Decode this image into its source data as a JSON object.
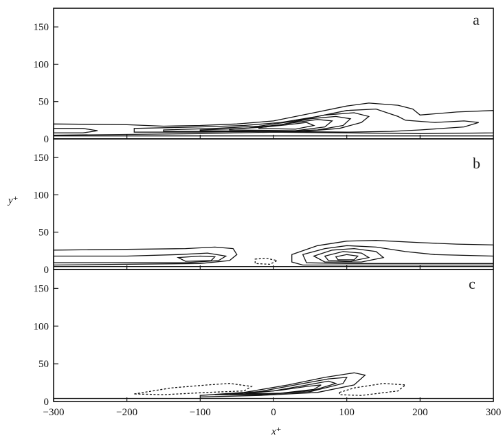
{
  "chart_data": [
    {
      "type": "contour",
      "panel_label": "a",
      "xlim": [
        -300,
        300
      ],
      "ylim": [
        0,
        175
      ],
      "yticks": [
        "150",
        "100",
        "50",
        "0"
      ],
      "ytick_values": [
        150,
        100,
        50,
        0
      ],
      "contour_levels": [
        {
          "style": "solid",
          "points": [
            [
              -300,
              20
            ],
            [
              -200,
              19
            ],
            [
              -150,
              17
            ],
            [
              -100,
              18
            ],
            [
              -50,
              20
            ],
            [
              0,
              24
            ],
            [
              50,
              34
            ],
            [
              100,
              44
            ],
            [
              130,
              48
            ],
            [
              170,
              45
            ],
            [
              190,
              40
            ],
            [
              200,
              32
            ],
            [
              250,
              36
            ],
            [
              300,
              38
            ],
            [
              300,
              8
            ],
            [
              200,
              7
            ],
            [
              100,
              8
            ],
            [
              0,
              9
            ],
            [
              -100,
              7
            ],
            [
              -200,
              6
            ],
            [
              -300,
              5
            ]
          ]
        },
        {
          "style": "solid",
          "points": [
            [
              -300,
              14
            ],
            [
              -260,
              14
            ],
            [
              -240,
              11
            ],
            [
              -260,
              8
            ],
            [
              -300,
              8
            ]
          ]
        },
        {
          "style": "solid",
          "points": [
            [
              -190,
              14
            ],
            [
              -100,
              16
            ],
            [
              -40,
              18
            ],
            [
              10,
              22
            ],
            [
              60,
              30
            ],
            [
              100,
              38
            ],
            [
              140,
              40
            ],
            [
              170,
              30
            ],
            [
              180,
              25
            ],
            [
              220,
              22
            ],
            [
              260,
              24
            ],
            [
              280,
              22
            ],
            [
              260,
              16
            ],
            [
              200,
              12
            ],
            [
              160,
              10
            ],
            [
              100,
              9
            ],
            [
              0,
              10
            ],
            [
              -100,
              9
            ],
            [
              -190,
              9
            ]
          ]
        },
        {
          "style": "solid",
          "points": [
            [
              -150,
              12
            ],
            [
              -80,
              14
            ],
            [
              -20,
              17
            ],
            [
              30,
              24
            ],
            [
              70,
              32
            ],
            [
              110,
              35
            ],
            [
              130,
              30
            ],
            [
              120,
              22
            ],
            [
              90,
              14
            ],
            [
              40,
              10
            ],
            [
              -50,
              10
            ],
            [
              -150,
              10
            ]
          ]
        },
        {
          "style": "solid",
          "points": [
            [
              -100,
              12
            ],
            [
              -40,
              14
            ],
            [
              10,
              19
            ],
            [
              50,
              27
            ],
            [
              85,
              30
            ],
            [
              105,
              27
            ],
            [
              95,
              18
            ],
            [
              60,
              12
            ],
            [
              0,
              10
            ],
            [
              -100,
              11
            ]
          ]
        },
        {
          "style": "solid",
          "points": [
            [
              -60,
              13
            ],
            [
              -10,
              16
            ],
            [
              30,
              22
            ],
            [
              60,
              26
            ],
            [
              80,
              24
            ],
            [
              70,
              16
            ],
            [
              30,
              11
            ],
            [
              -60,
              12
            ]
          ]
        },
        {
          "style": "solid",
          "points": [
            [
              -20,
              15
            ],
            [
              20,
              19
            ],
            [
              45,
              22
            ],
            [
              55,
              18
            ],
            [
              30,
              13
            ],
            [
              -20,
              14
            ]
          ]
        }
      ]
    },
    {
      "type": "contour",
      "panel_label": "b",
      "ylabel": "y⁺",
      "xlim": [
        -300,
        300
      ],
      "ylim": [
        0,
        175
      ],
      "yticks": [
        "150",
        "100",
        "50",
        "0"
      ],
      "ytick_values": [
        150,
        100,
        50,
        0
      ],
      "contour_levels": [
        {
          "style": "solid",
          "points": [
            [
              -300,
              26
            ],
            [
              -200,
              27
            ],
            [
              -120,
              28
            ],
            [
              -80,
              30
            ],
            [
              -55,
              28
            ],
            [
              -50,
              20
            ],
            [
              -60,
              12
            ],
            [
              -100,
              8
            ],
            [
              -200,
              7
            ],
            [
              -300,
              6
            ]
          ]
        },
        {
          "style": "solid",
          "points": [
            [
              -300,
              18
            ],
            [
              -200,
              18
            ],
            [
              -130,
              20
            ],
            [
              -90,
              22
            ],
            [
              -65,
              18
            ],
            [
              -75,
              12
            ],
            [
              -120,
              9
            ],
            [
              -200,
              9
            ],
            [
              -300,
              9
            ]
          ]
        },
        {
          "style": "solid",
          "points": [
            [
              -130,
              16
            ],
            [
              -100,
              18
            ],
            [
              -80,
              17
            ],
            [
              -85,
              12
            ],
            [
              -120,
              11
            ]
          ]
        },
        {
          "style": "dashed",
          "points": [
            [
              -25,
              14
            ],
            [
              -10,
              15
            ],
            [
              5,
              12
            ],
            [
              -5,
              7
            ],
            [
              -25,
              8
            ]
          ]
        },
        {
          "style": "solid",
          "points": [
            [
              25,
              20
            ],
            [
              60,
              32
            ],
            [
              100,
              38
            ],
            [
              140,
              39
            ],
            [
              200,
              36
            ],
            [
              250,
              34
            ],
            [
              300,
              33
            ],
            [
              300,
              6
            ],
            [
              200,
              6
            ],
            [
              100,
              6
            ],
            [
              40,
              6
            ],
            [
              25,
              10
            ]
          ]
        },
        {
          "style": "solid",
          "points": [
            [
              40,
              20
            ],
            [
              70,
              28
            ],
            [
              100,
              32
            ],
            [
              140,
              30
            ],
            [
              180,
              24
            ],
            [
              220,
              20
            ],
            [
              300,
              18
            ],
            [
              300,
              8
            ],
            [
              200,
              8
            ],
            [
              100,
              8
            ],
            [
              45,
              9
            ]
          ]
        },
        {
          "style": "solid",
          "points": [
            [
              55,
              18
            ],
            [
              80,
              26
            ],
            [
              110,
              28
            ],
            [
              140,
              24
            ],
            [
              150,
              16
            ],
            [
              120,
              10
            ],
            [
              70,
              10
            ]
          ]
        },
        {
          "style": "solid",
          "points": [
            [
              70,
              18
            ],
            [
              95,
              24
            ],
            [
              120,
              22
            ],
            [
              130,
              16
            ],
            [
              105,
              11
            ],
            [
              75,
              12
            ]
          ]
        },
        {
          "style": "solid",
          "points": [
            [
              85,
              17
            ],
            [
              100,
              20
            ],
            [
              115,
              18
            ],
            [
              110,
              13
            ],
            [
              88,
              13
            ]
          ]
        }
      ]
    },
    {
      "type": "contour",
      "panel_label": "c",
      "xlabel": "x⁺",
      "xlim": [
        -300,
        300
      ],
      "ylim": [
        0,
        175
      ],
      "xticks": [
        "−300",
        "−200",
        "−100",
        "0",
        "100",
        "200",
        "300"
      ],
      "xtick_values": [
        -300,
        -200,
        -100,
        0,
        100,
        200,
        300
      ],
      "yticks": [
        "150",
        "100",
        "50",
        "0"
      ],
      "ytick_values": [
        150,
        100,
        50,
        0
      ],
      "contour_levels": [
        {
          "style": "dashed",
          "points": [
            [
              -190,
              10
            ],
            [
              -140,
              18
            ],
            [
              -90,
              22
            ],
            [
              -60,
              24
            ],
            [
              -30,
              20
            ],
            [
              -40,
              14
            ],
            [
              -90,
              12
            ],
            [
              -150,
              9
            ]
          ]
        },
        {
          "style": "dashed",
          "points": [
            [
              90,
              12
            ],
            [
              110,
              18
            ],
            [
              150,
              24
            ],
            [
              180,
              22
            ],
            [
              170,
              14
            ],
            [
              120,
              8
            ],
            [
              90,
              9
            ]
          ]
        },
        {
          "style": "solid",
          "points": [
            [
              -100,
              8
            ],
            [
              -40,
              12
            ],
            [
              20,
              22
            ],
            [
              70,
              32
            ],
            [
              110,
              38
            ],
            [
              125,
              35
            ],
            [
              110,
              22
            ],
            [
              60,
              12
            ],
            [
              -20,
              8
            ],
            [
              -100,
              6
            ]
          ]
        },
        {
          "style": "solid",
          "points": [
            [
              -80,
              9
            ],
            [
              -20,
              13
            ],
            [
              30,
              22
            ],
            [
              75,
              30
            ],
            [
              100,
              32
            ],
            [
              95,
              24
            ],
            [
              50,
              13
            ],
            [
              -20,
              9
            ]
          ]
        },
        {
          "style": "solid",
          "points": [
            [
              -60,
              10
            ],
            [
              0,
              14
            ],
            [
              40,
              21
            ],
            [
              75,
              27
            ],
            [
              85,
              24
            ],
            [
              55,
              15
            ],
            [
              0,
              10
            ]
          ]
        },
        {
          "style": "solid",
          "points": [
            [
              -40,
              10
            ],
            [
              10,
              15
            ],
            [
              45,
              20
            ],
            [
              65,
              22
            ],
            [
              55,
              16
            ],
            [
              10,
              11
            ]
          ]
        }
      ]
    }
  ]
}
